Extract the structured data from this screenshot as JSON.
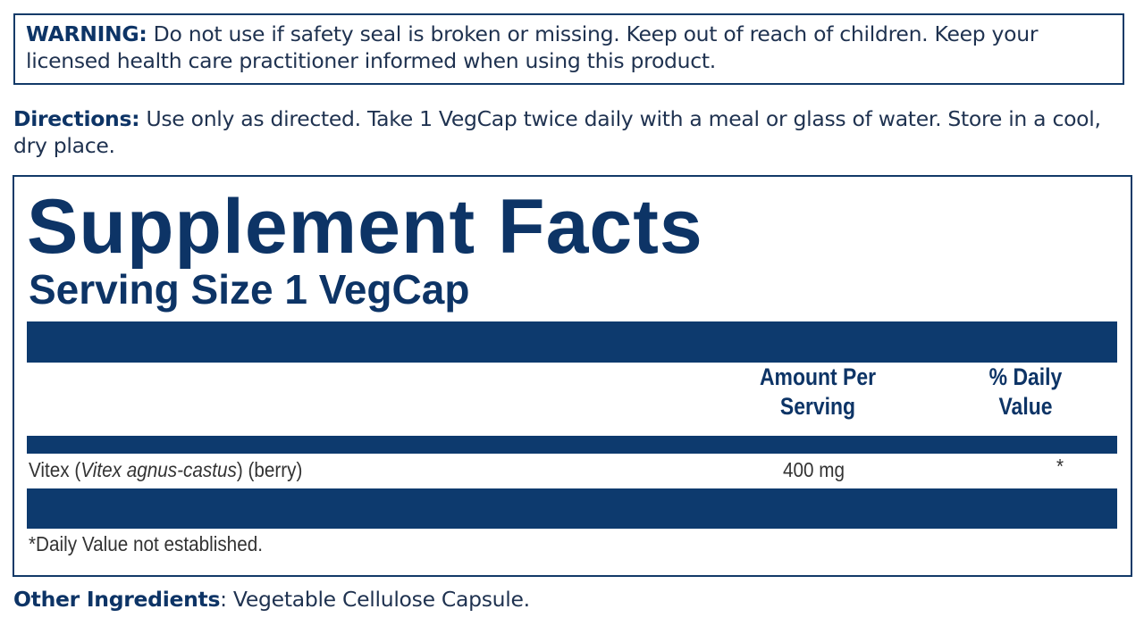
{
  "warning": {
    "label": "WARNING:",
    "text": " Do not use if safety seal is broken or missing. Keep out of reach of children. Keep your licensed health care practitioner informed when using this product."
  },
  "directions": {
    "label": "Directions:",
    "text": " Use only as directed. Take 1 VegCap twice daily with a meal or glass of water. Store in a cool, dry place."
  },
  "facts": {
    "title": "Supplement Facts",
    "serving_size": "Serving Size 1 VegCap",
    "col_amount_line1": "Amount Per",
    "col_amount_line2": "Serving",
    "col_dv_line1": "% Daily",
    "col_dv_line2": "Value",
    "rows": [
      {
        "name_prefix": "Vitex (",
        "name_italic": "Vitex agnus-castus",
        "name_suffix": ") (berry)",
        "amount": "400 mg",
        "dv": "*"
      }
    ],
    "footnote": "*Daily Value not established."
  },
  "other_ingredients": {
    "label": "Other Ingredients",
    "text": ": Vegetable Cellulose Capsule."
  },
  "colors": {
    "navy": "#0d3a6e",
    "text": "#1f3250"
  }
}
